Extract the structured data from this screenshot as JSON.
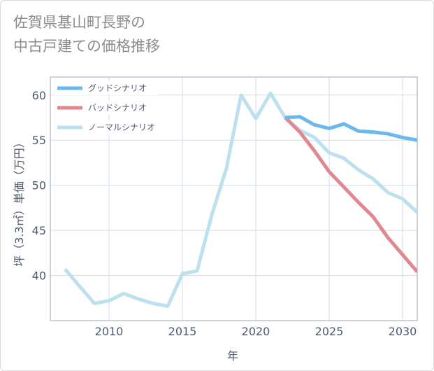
{
  "title_lines": [
    "佐賀県基山町長野の",
    "中古戸建ての価格推移"
  ],
  "chart_data": {
    "type": "line",
    "xlabel": "年",
    "ylabel": "坪（3.3㎡）単価（万円）",
    "xlim": [
      2006,
      2031
    ],
    "ylim": [
      35,
      62
    ],
    "xticks": [
      2010,
      2015,
      2020,
      2025,
      2030
    ],
    "yticks": [
      40,
      45,
      50,
      55,
      60
    ],
    "grid": true,
    "legend_position": "top-left",
    "series": [
      {
        "name": "グッドシナリオ",
        "color": "#6bb8ee",
        "x": [
          2022,
          2023,
          2024,
          2025,
          2026,
          2027,
          2028,
          2029,
          2030,
          2031
        ],
        "values": [
          57.5,
          57.6,
          56.7,
          56.3,
          56.8,
          56.0,
          55.9,
          55.7,
          55.3,
          55.0
        ]
      },
      {
        "name": "バッドシナリオ",
        "color": "#e0878f",
        "x": [
          2022,
          2023,
          2024,
          2025,
          2026,
          2027,
          2028,
          2029,
          2030,
          2031
        ],
        "values": [
          57.5,
          55.9,
          53.8,
          51.5,
          49.8,
          48.1,
          46.5,
          44.2,
          42.3,
          40.4
        ]
      },
      {
        "name": "ノーマルシナリオ",
        "color": "#bde0ee",
        "x": [
          2007,
          2008,
          2009,
          2010,
          2011,
          2012,
          2013,
          2014,
          2015,
          2016,
          2017,
          2018,
          2019,
          2020,
          2021,
          2022,
          2023,
          2024,
          2025,
          2026,
          2027,
          2028,
          2029,
          2030,
          2031
        ],
        "values": [
          40.7,
          38.8,
          36.9,
          37.2,
          38.0,
          37.4,
          36.9,
          36.6,
          40.2,
          40.5,
          46.7,
          51.9,
          60.0,
          57.4,
          60.2,
          57.5,
          56.1,
          55.3,
          53.6,
          53.0,
          51.7,
          50.7,
          49.2,
          48.5,
          47.0
        ]
      }
    ]
  }
}
